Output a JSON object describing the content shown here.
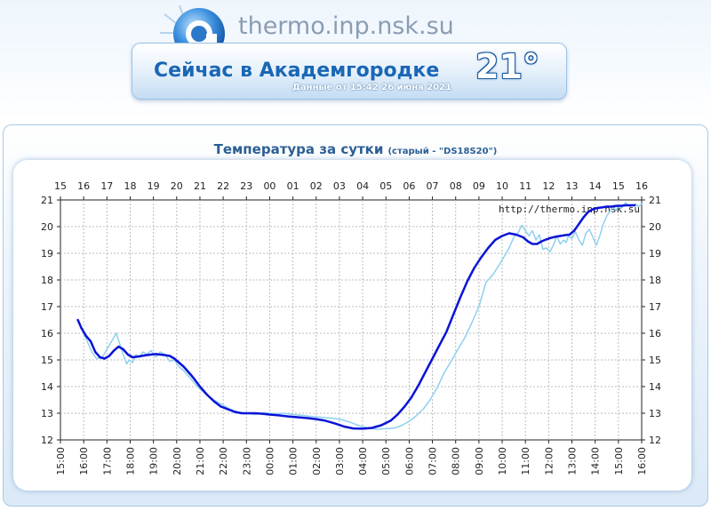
{
  "site": {
    "name": "thermo.inp.nsk.su"
  },
  "banner": {
    "title": "Сейчас в Академгородке",
    "subtitle": "Данные от 15:42 26 июня 2021",
    "temperature": "21°"
  },
  "chart_title": {
    "main": "Температура за сутки",
    "note": "(старый - \"DS18S20\")"
  },
  "colors": {
    "accent": "#1a67b5",
    "raw_series": "#8fd0ef",
    "smooth_series": "#0a14d6",
    "grid": "#bbbbbb"
  },
  "chart_data": {
    "type": "line",
    "title": "Температура за сутки",
    "watermark": "http://thermo.inp.nsk.su",
    "xlim": [
      15.0,
      16.0
    ],
    "ylim": [
      12,
      21
    ],
    "grid": true,
    "x_ticks_top": [
      "15",
      "16",
      "17",
      "18",
      "19",
      "20",
      "21",
      "22",
      "23",
      "00",
      "01",
      "02",
      "03",
      "04",
      "05",
      "06",
      "07",
      "08",
      "09",
      "10",
      "11",
      "12",
      "13",
      "14",
      "15",
      "16"
    ],
    "x_ticks_bottom": [
      "15:00",
      "16:00",
      "17:00",
      "18:00",
      "19:00",
      "20:00",
      "21:00",
      "22:00",
      "23:00",
      "00:00",
      "01:00",
      "02:00",
      "03:00",
      "04:00",
      "05:00",
      "06:00",
      "07:00",
      "08:00",
      "09:00",
      "10:00",
      "11:00",
      "12:00",
      "13:00",
      "14:00",
      "15:00",
      "16:00"
    ],
    "y_ticks": [
      12,
      13,
      14,
      15,
      16,
      17,
      18,
      19,
      20,
      21
    ],
    "series": [
      {
        "kind": "raw",
        "x": [
          15.75,
          15.9,
          16.1,
          16.35,
          16.55,
          16.8,
          17.0,
          17.2,
          17.4,
          17.55,
          17.7,
          17.85,
          17.95,
          18.1,
          18.25,
          18.4,
          18.55,
          18.7,
          18.9,
          19.1,
          19.3,
          19.5,
          19.7,
          19.9,
          20.1,
          20.3,
          20.5,
          20.7,
          21.0,
          21.3,
          21.6,
          22.0,
          22.3,
          22.6,
          23.0,
          23.4,
          23.8,
          24.2,
          24.6,
          25.0,
          25.4,
          25.8,
          26.2,
          26.6,
          27.0,
          27.4,
          27.8,
          28.2,
          28.6,
          29.0,
          29.4,
          29.7,
          30.0,
          30.3,
          30.6,
          30.9,
          31.2,
          31.5,
          31.8,
          32.1,
          32.4,
          32.7,
          33.0,
          33.3,
          33.6,
          33.9,
          34.1,
          34.3,
          34.5,
          34.7,
          34.85,
          35.0,
          35.15,
          35.3,
          35.45,
          35.6,
          35.75,
          35.9,
          36.05,
          36.2,
          36.35,
          36.5,
          36.65,
          36.75,
          36.85,
          37.0,
          37.15,
          37.3,
          37.45,
          37.6,
          37.75,
          37.9,
          38.05,
          38.2,
          38.35,
          38.5,
          38.65,
          38.75,
          38.9,
          39.0,
          39.15,
          39.3,
          39.5,
          39.6,
          39.75,
          39.85,
          40.0
        ],
        "y": [
          16.5,
          16.2,
          15.8,
          15.3,
          15.05,
          15.1,
          15.4,
          15.7,
          16.0,
          15.6,
          15.2,
          14.85,
          15.0,
          14.9,
          15.2,
          15.1,
          15.3,
          15.2,
          15.35,
          15.1,
          15.3,
          15.2,
          14.95,
          15.0,
          14.75,
          14.6,
          14.4,
          14.2,
          13.9,
          13.7,
          13.5,
          13.3,
          13.15,
          13.05,
          13.0,
          12.95,
          13.02,
          12.98,
          13.0,
          12.95,
          12.92,
          12.88,
          12.85,
          12.82,
          12.78,
          12.68,
          12.55,
          12.45,
          12.4,
          12.42,
          12.45,
          12.55,
          12.7,
          12.9,
          13.15,
          13.5,
          13.95,
          14.5,
          14.95,
          15.4,
          15.85,
          16.4,
          17.0,
          17.9,
          18.2,
          18.6,
          18.9,
          19.2,
          19.6,
          19.8,
          20.05,
          19.85,
          19.65,
          19.85,
          19.5,
          19.7,
          19.15,
          19.2,
          19.05,
          19.3,
          19.65,
          19.35,
          19.5,
          19.4,
          19.65,
          19.55,
          19.8,
          19.5,
          19.3,
          19.75,
          19.9,
          19.6,
          19.3,
          19.65,
          20.1,
          20.4,
          20.6,
          20.75,
          20.6,
          20.8,
          20.7,
          20.9,
          20.75,
          20.8,
          20.85,
          20.75,
          20.85
        ]
      },
      {
        "kind": "smoothed",
        "x": [
          15.75,
          15.9,
          16.1,
          16.3,
          16.5,
          16.7,
          16.9,
          17.1,
          17.3,
          17.5,
          17.7,
          17.9,
          18.1,
          18.3,
          18.5,
          18.7,
          18.9,
          19.1,
          19.3,
          19.5,
          19.7,
          19.9,
          20.1,
          20.3,
          20.5,
          20.7,
          21.0,
          21.3,
          21.6,
          21.9,
          22.2,
          22.5,
          22.8,
          23.1,
          23.4,
          23.7,
          24.0,
          24.4,
          24.8,
          25.2,
          25.6,
          26.0,
          26.4,
          26.8,
          27.2,
          27.6,
          28.0,
          28.4,
          28.8,
          29.2,
          29.5,
          29.8,
          30.1,
          30.4,
          30.7,
          31.0,
          31.3,
          31.6,
          31.9,
          32.2,
          32.5,
          32.8,
          33.1,
          33.4,
          33.7,
          34.0,
          34.3,
          34.6,
          34.9,
          35.1,
          35.3,
          35.5,
          35.7,
          35.9,
          36.1,
          36.3,
          36.5,
          36.7,
          36.9,
          37.1,
          37.3,
          37.5,
          37.7,
          37.9,
          38.1,
          38.3,
          38.5,
          38.7,
          38.9,
          39.1,
          39.3,
          39.5,
          39.7
        ],
        "y": [
          16.5,
          16.2,
          15.9,
          15.7,
          15.3,
          15.1,
          15.05,
          15.15,
          15.35,
          15.5,
          15.4,
          15.2,
          15.1,
          15.12,
          15.15,
          15.18,
          15.2,
          15.22,
          15.2,
          15.18,
          15.15,
          15.05,
          14.9,
          14.75,
          14.55,
          14.35,
          14.0,
          13.7,
          13.45,
          13.25,
          13.15,
          13.05,
          13.0,
          13.0,
          13.0,
          12.98,
          12.95,
          12.92,
          12.88,
          12.85,
          12.82,
          12.78,
          12.72,
          12.62,
          12.5,
          12.43,
          12.42,
          12.45,
          12.55,
          12.72,
          12.95,
          13.25,
          13.6,
          14.05,
          14.55,
          15.05,
          15.55,
          16.05,
          16.7,
          17.35,
          17.95,
          18.45,
          18.85,
          19.2,
          19.5,
          19.65,
          19.75,
          19.7,
          19.6,
          19.45,
          19.35,
          19.35,
          19.45,
          19.52,
          19.58,
          19.62,
          19.65,
          19.68,
          19.7,
          19.85,
          20.1,
          20.35,
          20.55,
          20.65,
          20.7,
          20.72,
          20.75,
          20.75,
          20.78,
          20.78,
          20.8,
          20.8,
          20.8
        ]
      }
    ]
  }
}
